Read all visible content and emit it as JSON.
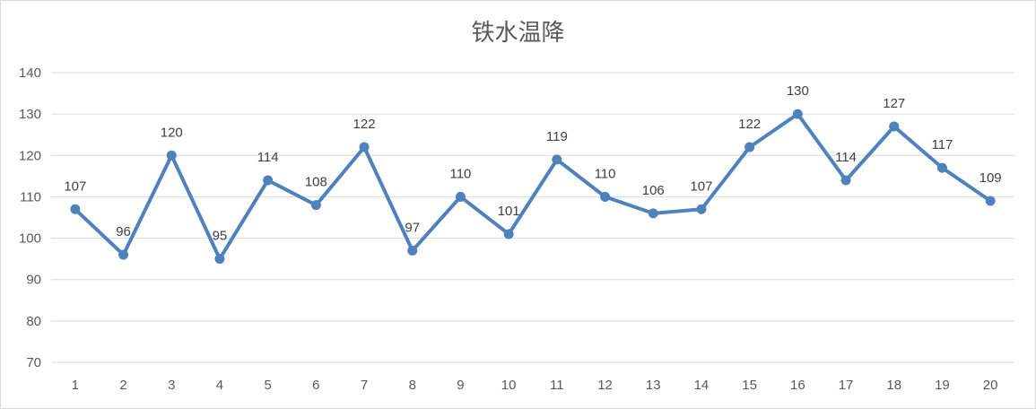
{
  "chart_data": {
    "type": "line",
    "title": "铁水温降",
    "xlabel": "",
    "ylabel": "",
    "categories": [
      "1",
      "2",
      "3",
      "4",
      "5",
      "6",
      "7",
      "8",
      "9",
      "10",
      "11",
      "12",
      "13",
      "14",
      "15",
      "16",
      "17",
      "18",
      "19",
      "20"
    ],
    "series": [
      {
        "values": [
          107,
          96,
          120,
          95,
          114,
          108,
          122,
          97,
          110,
          101,
          119,
          110,
          106,
          107,
          122,
          130,
          114,
          127,
          117,
          109
        ]
      }
    ],
    "ylim": [
      70,
      140
    ],
    "yticks": [
      70,
      80,
      90,
      100,
      110,
      120,
      130,
      140
    ],
    "grid": true,
    "legend": "none",
    "colors": {
      "line": "#4f81bd",
      "grid": "#d9d9d9",
      "text": "#595959"
    }
  }
}
